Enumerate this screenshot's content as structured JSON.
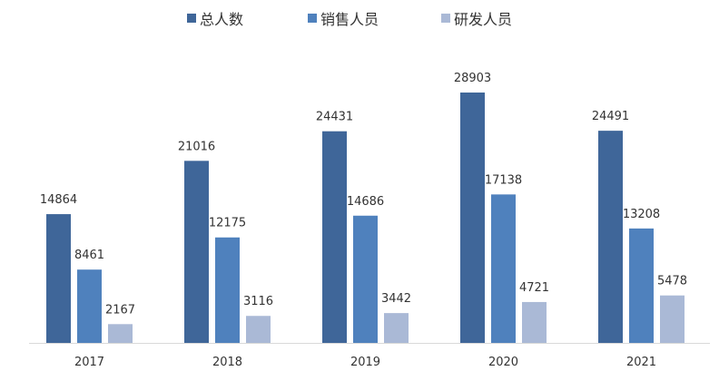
{
  "chart_data": {
    "type": "bar",
    "categories": [
      "2017",
      "2018",
      "2019",
      "2020",
      "2021"
    ],
    "series": [
      {
        "name": "总人数",
        "values": [
          14864,
          21016,
          24431,
          28903,
          24491
        ],
        "color": "#3f6699"
      },
      {
        "name": "销售人员",
        "values": [
          8461,
          12175,
          14686,
          17138,
          13208
        ],
        "color": "#4f81bd"
      },
      {
        "name": "研发人员",
        "values": [
          2167,
          3116,
          3442,
          4721,
          5478
        ],
        "color": "#aab9d6"
      }
    ],
    "ylim": [
      0,
      32000
    ],
    "legend_position": "top",
    "grid": false,
    "data_labels": true
  }
}
